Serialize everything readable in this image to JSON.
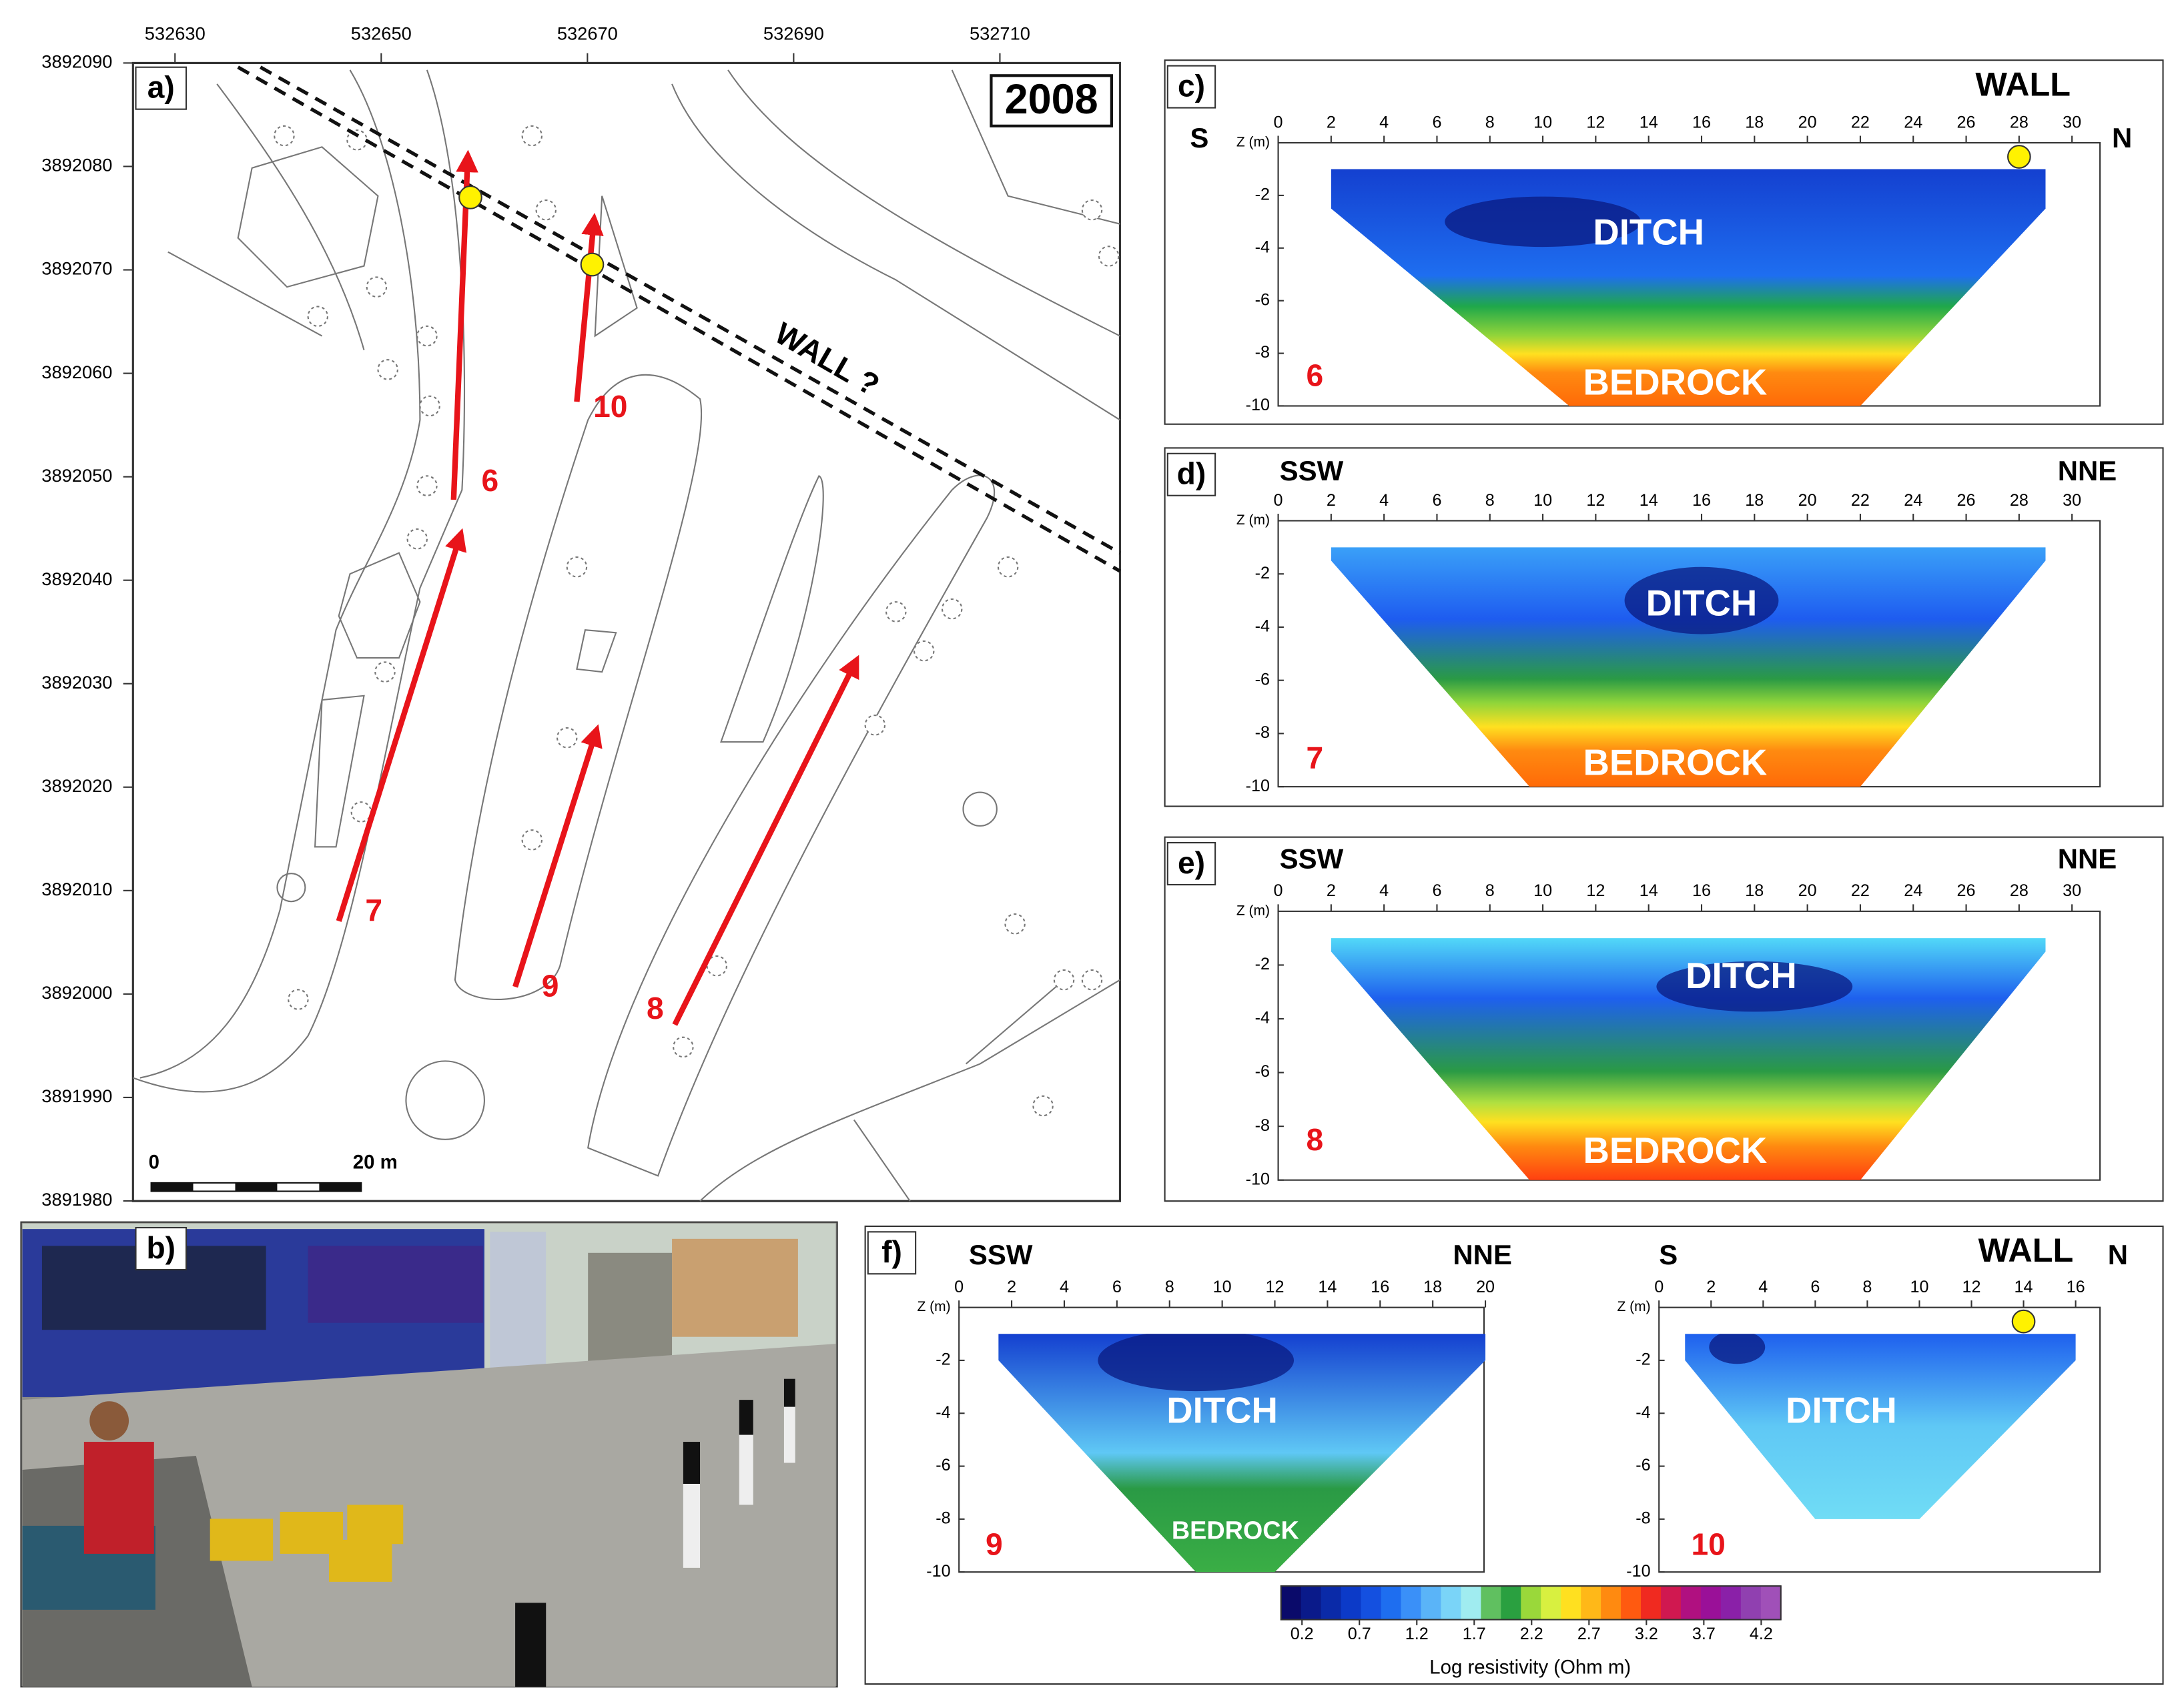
{
  "map": {
    "label": "a)",
    "year": "2008",
    "x_ticks": [
      532630,
      532650,
      532670,
      532690,
      532710
    ],
    "y_ticks": [
      3892090,
      3892080,
      3892070,
      3892060,
      3892050,
      3892040,
      3892030,
      3892020,
      3892010,
      3892000,
      3891990,
      3891980
    ],
    "wall_label": "WALL ?",
    "profiles": [
      "6",
      "7",
      "8",
      "9",
      "10"
    ],
    "scale_start": "0",
    "scale_end": "20 m"
  },
  "photo": {
    "label": "b)"
  },
  "sections": [
    {
      "label": "c)",
      "left": "S",
      "right": "N",
      "wall": "WALL",
      "x_ticks": [
        0,
        2,
        4,
        6,
        8,
        10,
        12,
        14,
        16,
        18,
        20,
        22,
        24,
        26,
        28,
        30
      ],
      "z_label": "Z (m)",
      "z_ticks": [
        -2,
        -4,
        -6,
        -8,
        -10
      ],
      "ditch": "DITCH",
      "bedrock": "BEDROCK",
      "profile": "6"
    },
    {
      "label": "d)",
      "left": "SSW",
      "right": "NNE",
      "x_ticks": [
        0,
        2,
        4,
        6,
        8,
        10,
        12,
        14,
        16,
        18,
        20,
        22,
        24,
        26,
        28,
        30
      ],
      "z_label": "Z (m)",
      "z_ticks": [
        -2,
        -4,
        -6,
        -8,
        -10
      ],
      "ditch": "DITCH",
      "bedrock": "BEDROCK",
      "profile": "7"
    },
    {
      "label": "e)",
      "left": "SSW",
      "right": "NNE",
      "x_ticks": [
        0,
        2,
        4,
        6,
        8,
        10,
        12,
        14,
        16,
        18,
        20,
        22,
        24,
        26,
        28,
        30
      ],
      "z_label": "Z (m)",
      "z_ticks": [
        -2,
        -4,
        -6,
        -8,
        -10
      ],
      "ditch": "DITCH",
      "bedrock": "BEDROCK",
      "profile": "8"
    }
  ],
  "panel_f": {
    "label": "f)",
    "sections": [
      {
        "left": "SSW",
        "right": "NNE",
        "x_ticks": [
          0,
          2,
          4,
          6,
          8,
          10,
          12,
          14,
          16,
          18,
          20
        ],
        "z_label": "Z (m)",
        "z_ticks": [
          -2,
          -4,
          -6,
          -8,
          -10
        ],
        "ditch": "DITCH",
        "bedrock": "BEDROCK",
        "profile": "9"
      },
      {
        "left": "S",
        "right": "N",
        "wall": "WALL",
        "x_ticks": [
          0,
          2,
          4,
          6,
          8,
          10,
          12,
          14,
          16
        ],
        "z_label": "Z (m)",
        "z_ticks": [
          -2,
          -4,
          -6,
          -8,
          -10
        ],
        "ditch": "DITCH",
        "profile": "10"
      }
    ]
  },
  "colorbar": {
    "ticks": [
      0.2,
      0.7,
      1.2,
      1.7,
      2.2,
      2.7,
      3.2,
      3.7,
      4.2
    ],
    "title": "Log resistivity (Ohm m)"
  }
}
